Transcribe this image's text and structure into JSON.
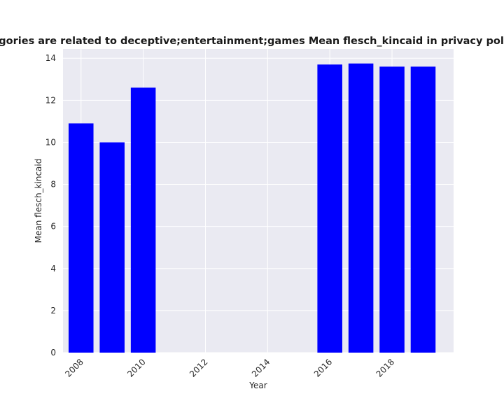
{
  "chart_data": {
    "type": "bar",
    "title": "categories are related to deceptive;entertainment;games Mean flesch_kincaid in privacy policies",
    "xlabel": "Year",
    "ylabel": "Mean flesch_kincaid",
    "x": [
      2008,
      2009,
      2010,
      2016,
      2017,
      2018,
      2019
    ],
    "values": [
      10.9,
      10.0,
      12.6,
      13.7,
      13.75,
      13.6,
      13.6
    ],
    "xticks": [
      "2008",
      "2010",
      "2012",
      "2014",
      "2016",
      "2018"
    ],
    "yticks": [
      "0",
      "2",
      "4",
      "6",
      "8",
      "10",
      "12",
      "14"
    ],
    "xlim": [
      2007.42,
      2019.98
    ],
    "ylim": [
      0,
      14.44
    ],
    "bar_color": "#0000ff",
    "plot_background": "#eaeaf2",
    "grid": true,
    "grid_color": "#ffffff"
  }
}
